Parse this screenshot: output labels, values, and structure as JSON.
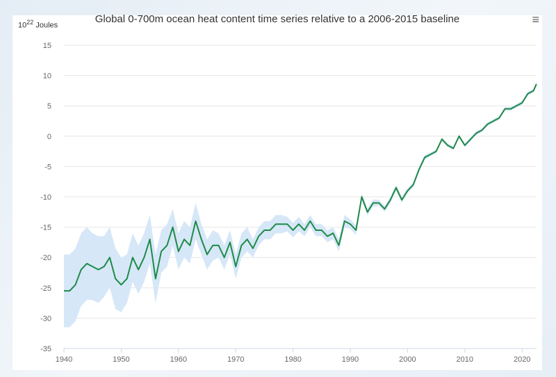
{
  "chart_data": {
    "type": "line",
    "title": "Global 0-700m ocean heat content time series relative to a 2006-2015 baseline",
    "unit_base": "10",
    "unit_exp": "22",
    "unit_label": "Joules",
    "ylim": [
      -35,
      15
    ],
    "yticks": [
      15,
      10,
      5,
      0,
      -5,
      -10,
      -15,
      -20,
      -25,
      -30,
      -35
    ],
    "xlim": [
      1940,
      2023
    ],
    "xticks": [
      1940,
      1950,
      1960,
      1970,
      1980,
      1990,
      2000,
      2010,
      2020
    ],
    "grid": true,
    "legend": "none",
    "colors": {
      "line": "#1e8a47",
      "band": "#d6e7f8",
      "grid": "#e6e6e6"
    },
    "series": [
      {
        "x": [
          1940,
          1941,
          1942,
          1943,
          1944,
          1945,
          1946,
          1947,
          1948,
          1949,
          1950,
          1951,
          1952,
          1953,
          1954,
          1955,
          1956,
          1957,
          1958,
          1959,
          1960,
          1961,
          1962,
          1963,
          1964,
          1965,
          1966,
          1967,
          1968,
          1969,
          1970,
          1971,
          1972,
          1973,
          1974,
          1975,
          1976,
          1977,
          1978,
          1979,
          1980,
          1981,
          1982,
          1983,
          1984,
          1985,
          1986,
          1987,
          1988,
          1989,
          1990,
          1991,
          1992,
          1993,
          1994,
          1995,
          1996,
          1997,
          1998,
          1999,
          2000,
          2001,
          2002,
          2003,
          2004,
          2005,
          2006,
          2007,
          2008,
          2009,
          2010,
          2011,
          2012,
          2013,
          2014,
          2015,
          2016,
          2017,
          2018,
          2019,
          2020,
          2021,
          2022,
          2022.5
        ],
        "y": [
          -25.5,
          -25.5,
          -24.5,
          -22,
          -21,
          -21.5,
          -22,
          -21.5,
          -20,
          -23.5,
          -24.5,
          -23.5,
          -20,
          -22,
          -20,
          -17,
          -23.5,
          -19,
          -18,
          -15,
          -19,
          -17,
          -18,
          -14,
          -17,
          -19.5,
          -18,
          -18,
          -20,
          -17.5,
          -21.5,
          -18,
          -17,
          -18.5,
          -16.5,
          -15.5,
          -15.5,
          -14.5,
          -14.5,
          -14.5,
          -15.5,
          -14.5,
          -15.5,
          -14,
          -15.5,
          -15.5,
          -16.5,
          -16,
          -18,
          -14,
          -14.5,
          -15.5,
          -10,
          -12.5,
          -11,
          -11,
          -12,
          -10.5,
          -8.5,
          -10.5,
          -9,
          -8,
          -5.5,
          -3.5,
          -3,
          -2.5,
          -0.5,
          -1.5,
          -2,
          0,
          -1.5,
          -0.5,
          0.5,
          1,
          2,
          2.5,
          3,
          4.5,
          4.5,
          5,
          5.5,
          7,
          7.5,
          8.6
        ],
        "uncertainty": [
          6,
          6,
          6,
          6,
          6,
          5.5,
          5.5,
          5,
          5,
          5,
          4.5,
          4,
          4,
          4,
          4,
          4,
          4,
          3.5,
          3.5,
          3,
          3,
          3,
          3,
          3,
          2.5,
          2.5,
          2.5,
          2,
          2,
          2,
          2,
          2,
          2,
          1.5,
          1.5,
          1.5,
          1.5,
          1.5,
          1.5,
          1.2,
          1.2,
          1.2,
          1,
          1,
          1,
          1,
          1,
          1,
          1,
          1,
          0.8,
          0.8,
          0.6,
          0.6,
          0.6,
          0.5,
          0.5,
          0.5,
          0.5,
          0.5,
          0.4,
          0.4,
          0.4,
          0.4,
          0.3,
          0.3,
          0.3,
          0.3,
          0.3,
          0.3,
          0.3,
          0.3,
          0.3,
          0.3,
          0.3,
          0.3,
          0.3,
          0.3,
          0.3,
          0.3,
          0.3,
          0.3,
          0.3,
          0.3
        ]
      }
    ]
  },
  "ui": {
    "menu_icon": "hamburger-menu-icon",
    "menu_glyph": "≡"
  }
}
